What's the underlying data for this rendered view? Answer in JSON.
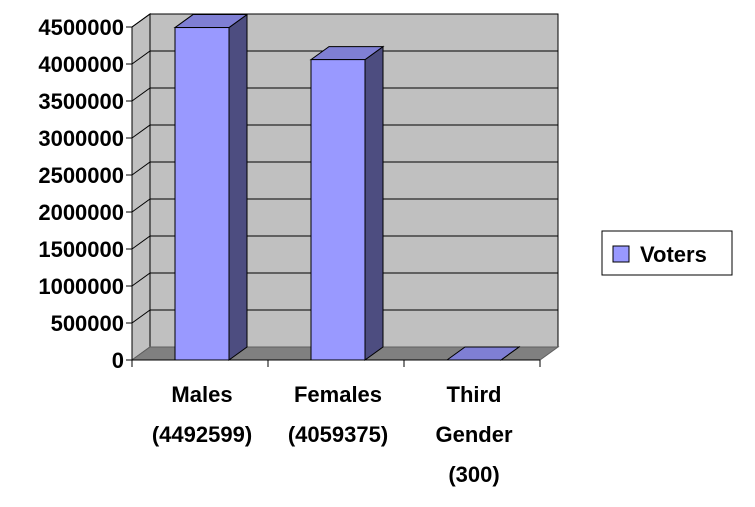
{
  "chart_data": {
    "type": "bar",
    "categories": [
      [
        "Males",
        "(4492599)"
      ],
      [
        "Females",
        "(4059375)"
      ],
      [
        "Third",
        "Gender",
        "(300)"
      ]
    ],
    "series": [
      {
        "name": "Voters",
        "values": [
          4492599,
          4059375,
          300
        ]
      }
    ],
    "ylim": [
      0,
      4500000
    ],
    "yticks": [
      "0",
      "500000",
      "1000000",
      "1500000",
      "2000000",
      "2500000",
      "3000000",
      "3500000",
      "4000000",
      "4500000"
    ],
    "grid": true,
    "legend": "right",
    "colors": {
      "bar_front": "#9999ff",
      "bar_side": "#4d4d80",
      "bar_top": "#7f7fd4",
      "wall": "#c0c0c0",
      "floor": "#808080",
      "grid": "#000000"
    }
  }
}
